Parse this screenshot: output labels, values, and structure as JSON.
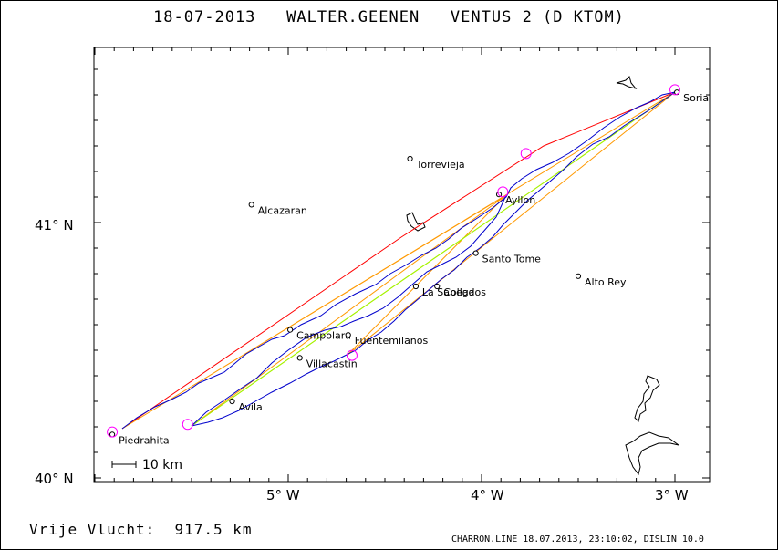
{
  "header": {
    "date": "18-07-2013",
    "pilot": "WALTER.GEENEN",
    "glider": "VENTUS 2 (D KTOM)"
  },
  "footer": {
    "distance_label": "Vrije Vlucht:",
    "distance_value": "917.5 km",
    "credit": "CHARRON.LINE 18.07.2013, 23:10:02, DISLIN 10.0"
  },
  "map": {
    "y_ticks": [
      "41° N",
      "40° N"
    ],
    "x_ticks": [
      "5° W",
      "4° W",
      "3° W"
    ],
    "scale_label": "10 km",
    "colors": {
      "track": "#0000cc",
      "task_leg": "#ff0000",
      "triangle": "#ff9900",
      "diagonal": "#99ff00",
      "turnpoint": "#ff00ff"
    },
    "places": [
      {
        "name": "Soria",
        "lon": -2.99,
        "lat": 41.51
      },
      {
        "name": "Torrevieja",
        "lon": -4.37,
        "lat": 41.25
      },
      {
        "name": "Alcazaran",
        "lon": -5.19,
        "lat": 41.07
      },
      {
        "name": "Ayllon",
        "lon": -3.91,
        "lat": 41.11
      },
      {
        "name": "Santo Tome",
        "lon": -4.03,
        "lat": 40.88
      },
      {
        "name": "Alto Rey",
        "lon": -3.5,
        "lat": 40.79
      },
      {
        "name": "La Sabega",
        "lon": -4.34,
        "lat": 40.75
      },
      {
        "name": "Collados",
        "lon": -4.23,
        "lat": 40.75
      },
      {
        "name": "Campolara",
        "lon": -4.99,
        "lat": 40.58
      },
      {
        "name": "Fuentemilanos",
        "lon": -4.69,
        "lat": 40.56
      },
      {
        "name": "Villacastin",
        "lon": -4.94,
        "lat": 40.47
      },
      {
        "name": "Avila",
        "lon": -5.29,
        "lat": 40.3
      },
      {
        "name": "Piedrahita",
        "lon": -5.91,
        "lat": 40.17
      }
    ],
    "turnpoints": [
      {
        "lon": -5.91,
        "lat": 40.18
      },
      {
        "lon": -5.52,
        "lat": 40.21
      },
      {
        "lon": -4.67,
        "lat": 40.48
      },
      {
        "lon": -3.89,
        "lat": 41.12
      },
      {
        "lon": -3.77,
        "lat": 41.27
      },
      {
        "lon": -3.0,
        "lat": 41.52
      }
    ]
  }
}
